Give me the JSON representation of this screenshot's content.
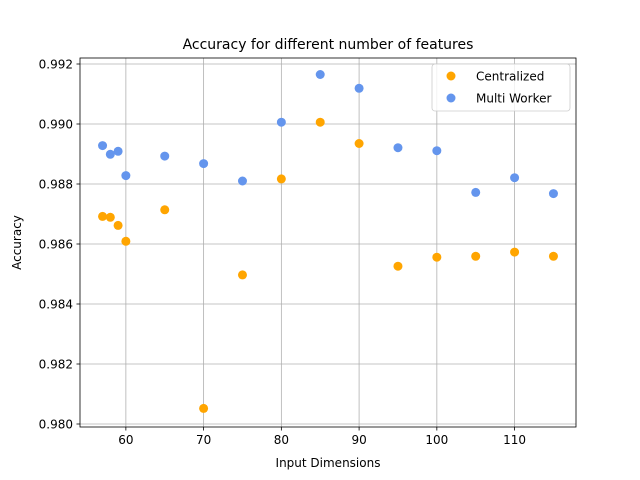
{
  "chart_data": {
    "type": "scatter",
    "title": "Accuracy for different number of features",
    "xlabel": "Input Dimensions",
    "ylabel": "Accuracy",
    "xlim": [
      54.1,
      117.9
    ],
    "ylim": [
      0.9799,
      0.9922
    ],
    "xticks": [
      60,
      70,
      80,
      90,
      100,
      110
    ],
    "xtick_labels": [
      "60",
      "70",
      "80",
      "90",
      "100",
      "110"
    ],
    "yticks": [
      0.98,
      0.982,
      0.984,
      0.986,
      0.988,
      0.99,
      0.992
    ],
    "ytick_labels": [
      "0.980",
      "0.982",
      "0.984",
      "0.986",
      "0.988",
      "0.990",
      "0.992"
    ],
    "grid": true,
    "legend_position": "top-right",
    "series": [
      {
        "name": "Centralized",
        "color": "#FFA500",
        "points": [
          {
            "x": 57,
            "y": 0.98692
          },
          {
            "x": 58,
            "y": 0.98689
          },
          {
            "x": 59,
            "y": 0.98662
          },
          {
            "x": 60,
            "y": 0.98609
          },
          {
            "x": 65,
            "y": 0.98714
          },
          {
            "x": 70,
            "y": 0.98052
          },
          {
            "x": 75,
            "y": 0.98497
          },
          {
            "x": 80,
            "y": 0.98817
          },
          {
            "x": 85,
            "y": 0.99006
          },
          {
            "x": 90,
            "y": 0.98935
          },
          {
            "x": 95,
            "y": 0.98526
          },
          {
            "x": 100,
            "y": 0.98556
          },
          {
            "x": 105,
            "y": 0.98559
          },
          {
            "x": 110,
            "y": 0.98573
          },
          {
            "x": 115,
            "y": 0.98559
          }
        ]
      },
      {
        "name": "Multi Worker",
        "color": "#6495ED",
        "points": [
          {
            "x": 57,
            "y": 0.98928
          },
          {
            "x": 58,
            "y": 0.98899
          },
          {
            "x": 59,
            "y": 0.98909
          },
          {
            "x": 60,
            "y": 0.98828
          },
          {
            "x": 65,
            "y": 0.98893
          },
          {
            "x": 70,
            "y": 0.98868
          },
          {
            "x": 75,
            "y": 0.9881
          },
          {
            "x": 80,
            "y": 0.99006
          },
          {
            "x": 85,
            "y": 0.99165
          },
          {
            "x": 90,
            "y": 0.99119
          },
          {
            "x": 95,
            "y": 0.98921
          },
          {
            "x": 100,
            "y": 0.98911
          },
          {
            "x": 105,
            "y": 0.98772
          },
          {
            "x": 110,
            "y": 0.98821
          },
          {
            "x": 115,
            "y": 0.98768
          }
        ]
      }
    ]
  }
}
